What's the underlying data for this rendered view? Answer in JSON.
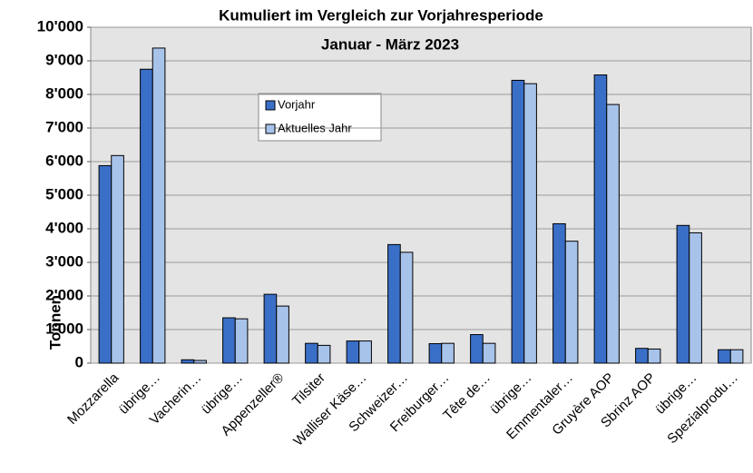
{
  "chart_data": {
    "type": "bar",
    "title": "Kumuliert im Vergleich zur Vorjahresperiode",
    "subtitle": "Januar - März 2023",
    "y_label": "Tonnen",
    "categories": [
      "Mozzarella",
      "übrige…",
      "Vacherin…",
      "übrige…",
      "Appenzeller®",
      "Tilsiter",
      "Walliser Käse…",
      "Schweizer…",
      "Freiburger…",
      "Tête de…",
      "übrige…",
      "Emmentaler…",
      "Gruyère AOP",
      "Sbrinz AOP",
      "übrige…",
      "Spezialprodu…"
    ],
    "series": [
      {
        "name": "Vorjahr",
        "color": "#3a6fc8",
        "values": [
          5880,
          8750,
          100,
          1350,
          2050,
          590,
          660,
          3530,
          580,
          850,
          8420,
          4150,
          8580,
          440,
          4100,
          400
        ]
      },
      {
        "name": "Aktuelles Jahr",
        "color": "#a8c3ea",
        "values": [
          6180,
          9380,
          80,
          1320,
          1700,
          530,
          660,
          3300,
          590,
          590,
          8320,
          3630,
          7700,
          420,
          3880,
          400
        ]
      }
    ],
    "ylim": [
      0,
      10000
    ],
    "yticks": [
      0,
      {
        "value": 1000,
        "label": "1'000"
      },
      {
        "value": 2000,
        "label": "2'000"
      },
      {
        "value": 3000,
        "label": "3'000"
      },
      {
        "value": 4000,
        "label": "4'000"
      },
      {
        "value": 5000,
        "label": "5'000"
      },
      {
        "value": 6000,
        "label": "6'000"
      },
      {
        "value": 7000,
        "label": "7'000"
      },
      {
        "value": 8000,
        "label": "8'000"
      },
      {
        "value": 9000,
        "label": "9'000"
      },
      {
        "value": 10000,
        "label": "10'000"
      }
    ],
    "grid": true
  }
}
